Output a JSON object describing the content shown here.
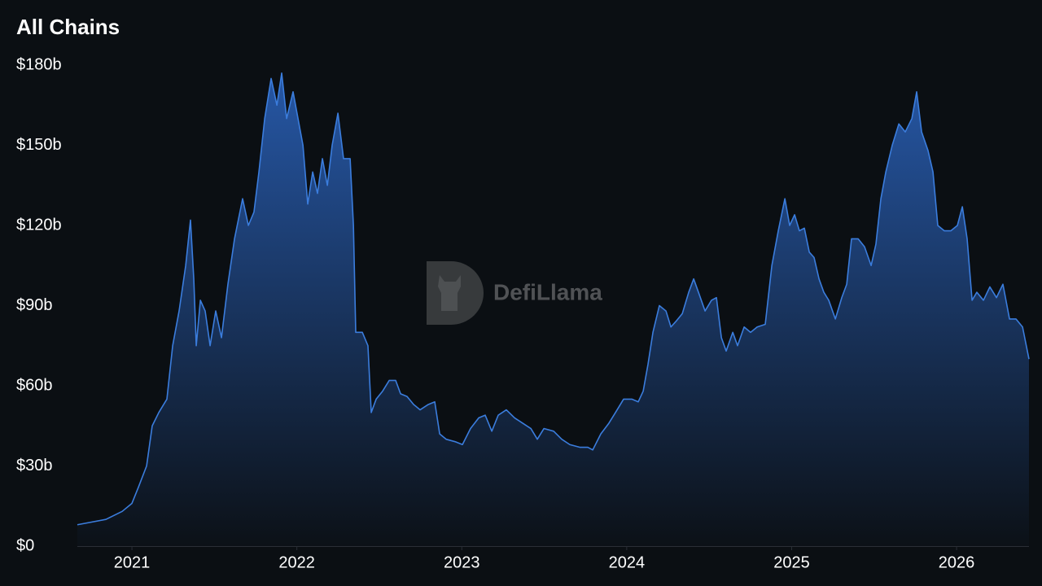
{
  "chart_data": {
    "type": "area",
    "title": "All Chains",
    "watermark": "DefiLlama",
    "color": "#3b7ddd",
    "x": [
      2020.669,
      2020.842,
      2020.941,
      2021.0,
      2021.039,
      2021.089,
      2021.123,
      2021.163,
      2021.212,
      2021.247,
      2021.286,
      2021.326,
      2021.355,
      2021.375,
      2021.39,
      2021.415,
      2021.444,
      2021.474,
      2021.508,
      2021.543,
      2021.582,
      2021.622,
      2021.671,
      2021.706,
      2021.74,
      2021.77,
      2021.805,
      2021.844,
      2021.879,
      2021.908,
      2021.938,
      2021.977,
      2022.007,
      2022.037,
      2022.066,
      2022.096,
      2022.125,
      2022.155,
      2022.185,
      2022.214,
      2022.249,
      2022.283,
      2022.323,
      2022.343,
      2022.357,
      2022.397,
      2022.431,
      2022.451,
      2022.481,
      2022.52,
      2022.56,
      2022.599,
      2022.629,
      2022.668,
      2022.708,
      2022.747,
      2022.797,
      2022.836,
      2022.866,
      2022.905,
      2022.964,
      2023.004,
      2023.053,
      2023.103,
      2023.142,
      2023.182,
      2023.221,
      2023.27,
      2023.32,
      2023.369,
      2023.419,
      2023.458,
      2023.498,
      2023.557,
      2023.606,
      2023.655,
      2023.715,
      2023.764,
      2023.794,
      2023.843,
      2023.892,
      2023.932,
      2023.981,
      2024.031,
      2024.07,
      2024.1,
      2024.129,
      2024.159,
      2024.198,
      2024.238,
      2024.268,
      2024.297,
      2024.337,
      2024.376,
      2024.406,
      2024.435,
      2024.475,
      2024.514,
      2024.544,
      2024.574,
      2024.603,
      2024.643,
      2024.672,
      2024.712,
      2024.751,
      2024.791,
      2024.84,
      2024.88,
      2024.919,
      2024.959,
      2024.988,
      2025.018,
      2025.047,
      2025.077,
      2025.107,
      2025.136,
      2025.166,
      2025.195,
      2025.225,
      2025.265,
      2025.304,
      2025.334,
      2025.363,
      2025.403,
      2025.442,
      2025.482,
      2025.511,
      2025.541,
      2025.571,
      2025.61,
      2025.65,
      2025.689,
      2025.729,
      2025.758,
      2025.788,
      2025.827,
      2025.857,
      2025.886,
      2025.926,
      2025.965,
      2026.005,
      2026.035,
      2026.064,
      2026.094,
      2026.123,
      2026.163,
      2026.202,
      2026.242,
      2026.281,
      2026.321,
      2026.36,
      2026.4,
      2026.439
    ],
    "values": [
      8,
      10,
      13,
      16,
      22,
      30,
      45,
      50,
      55,
      75,
      88,
      105,
      122,
      100,
      75,
      92,
      88,
      75,
      88,
      78,
      98,
      115,
      130,
      120,
      125,
      140,
      160,
      175,
      165,
      177,
      160,
      170,
      160,
      150,
      128,
      140,
      132,
      145,
      135,
      150,
      162,
      145,
      145,
      120,
      80,
      80,
      75,
      50,
      55,
      58,
      62,
      62,
      57,
      56,
      53,
      51,
      53,
      54,
      42,
      40,
      39,
      38,
      44,
      48,
      49,
      43,
      49,
      51,
      48,
      46,
      44,
      40,
      44,
      43,
      40,
      38,
      37,
      37,
      36,
      42,
      46,
      50,
      55,
      55,
      54,
      58,
      68,
      80,
      90,
      88,
      82,
      84,
      87,
      95,
      100,
      95,
      88,
      92,
      93,
      78,
      73,
      80,
      75,
      82,
      80,
      82,
      83,
      105,
      118,
      130,
      120,
      124,
      118,
      119,
      110,
      108,
      100,
      95,
      92,
      85,
      93,
      98,
      115,
      115,
      112,
      105,
      113,
      130,
      140,
      150,
      158,
      155,
      160,
      170,
      155,
      148,
      140,
      120,
      118,
      118,
      120,
      127,
      115,
      92,
      95,
      92,
      97,
      93,
      98,
      85,
      85,
      82,
      70
    ],
    "xlim": [
      2020.669,
      2026.439
    ],
    "xticks": [
      2021,
      2022,
      2023,
      2024,
      2025,
      2026
    ],
    "ylim": [
      0,
      180
    ],
    "yticks": [
      {
        "value": 0,
        "label": "$0"
      },
      {
        "value": 30,
        "label": "$30b"
      },
      {
        "value": 60,
        "label": "$60b"
      },
      {
        "value": 90,
        "label": "$90b"
      },
      {
        "value": 120,
        "label": "$120b"
      },
      {
        "value": 150,
        "label": "$150b"
      },
      {
        "value": 180,
        "label": "$180b"
      }
    ]
  }
}
